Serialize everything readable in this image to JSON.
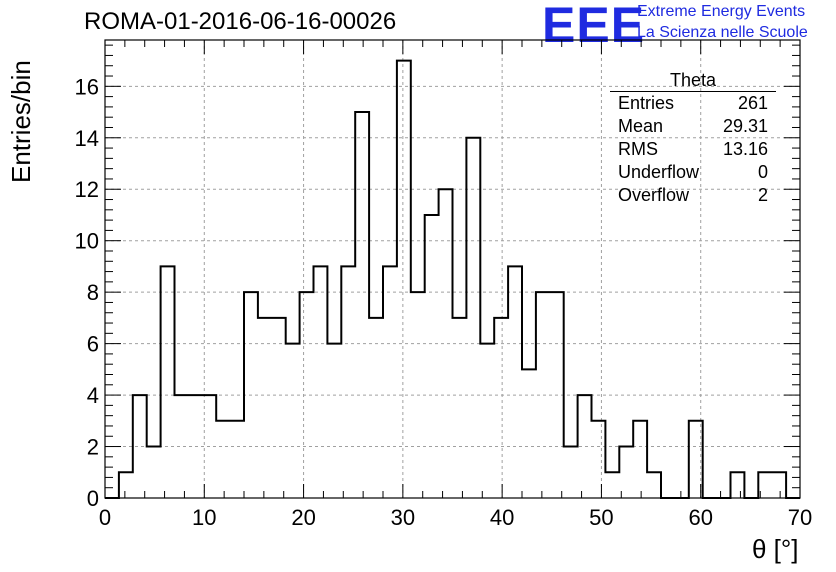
{
  "title": "ROMA-01-2016-06-16-00026",
  "logo": {
    "text": "EEE",
    "line1": "Extreme Energy Events",
    "line2": "La Scienza nelle Scuole",
    "color": "#1f2be0"
  },
  "stats": {
    "name": "Theta",
    "rows": [
      {
        "label": "Entries",
        "value": "261"
      },
      {
        "label": "Mean",
        "value": "29.31"
      },
      {
        "label": "RMS",
        "value": "13.16"
      },
      {
        "label": "Underflow",
        "value": "0"
      },
      {
        "label": "Overflow",
        "value": "2"
      }
    ]
  },
  "chart_data": {
    "type": "histogram",
    "xlabel": "θ [°]",
    "ylabel": "Entries/bin",
    "xlim": [
      0,
      70
    ],
    "ylim": [
      0,
      17.8
    ],
    "x_ticks": [
      0,
      10,
      20,
      30,
      40,
      50,
      60,
      70
    ],
    "y_ticks": [
      0,
      2,
      4,
      6,
      8,
      10,
      12,
      14,
      16
    ],
    "grid": true,
    "bin_width": 1.4,
    "bin_edges_start": 0,
    "counts": [
      0,
      1,
      4,
      2,
      9,
      4,
      4,
      4,
      3,
      3,
      8,
      7,
      7,
      6,
      8,
      9,
      6,
      9,
      15,
      7,
      9,
      17,
      8,
      11,
      12,
      7,
      14,
      6,
      7,
      9,
      5,
      8,
      8,
      2,
      4,
      3,
      1,
      2,
      3,
      1,
      0,
      0,
      3,
      0,
      0,
      1,
      0,
      1,
      1,
      0
    ]
  }
}
